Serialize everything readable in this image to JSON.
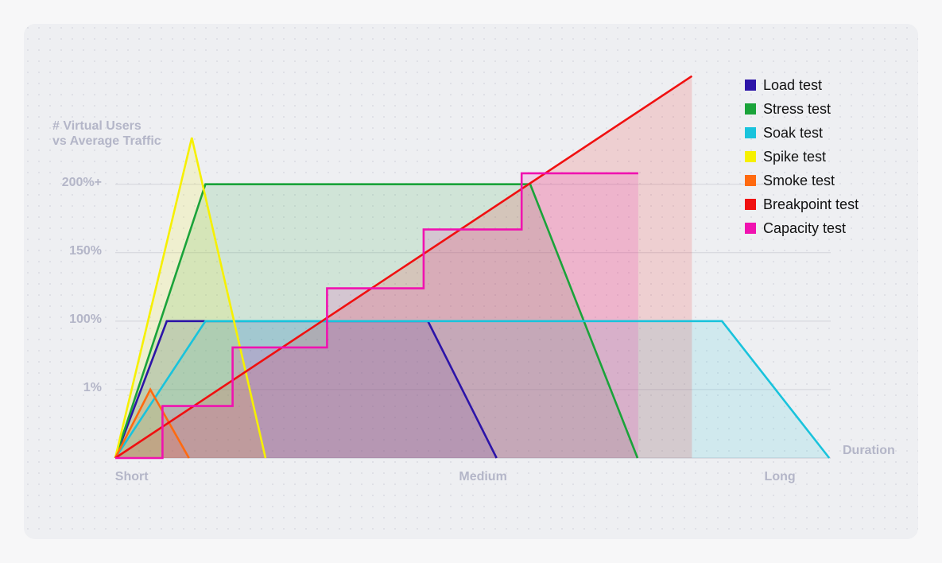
{
  "chart_data": {
    "type": "line",
    "y_label": [
      "# Virtual Users",
      "vs Average Traffic"
    ],
    "x_label": "Duration",
    "xlim": [
      0,
      100
    ],
    "xticks": [
      {
        "value": 2.3,
        "label": "Short"
      },
      {
        "value": 51.4,
        "label": "Medium"
      },
      {
        "value": 92.9,
        "label": "Long"
      }
    ],
    "ylim": [
      0,
      280
    ],
    "yticks": [
      {
        "value": 1,
        "label": "1%"
      },
      {
        "value": 100,
        "label": "100%"
      },
      {
        "value": 150,
        "label": "150%"
      },
      {
        "value": 200,
        "label": "200%+"
      }
    ],
    "grid": true,
    "legend": "top-right",
    "series": [
      {
        "name": "Load test",
        "color": "#2c14a8",
        "x": [
          0,
          7.2,
          43.7,
          53.3
        ],
        "values": [
          0,
          100,
          100,
          0
        ]
      },
      {
        "name": "Stress test",
        "color": "#1aa33a",
        "x": [
          0,
          12.6,
          58,
          73
        ],
        "values": [
          0,
          200,
          200,
          0
        ]
      },
      {
        "name": "Soak test",
        "color": "#19c3dc",
        "x": [
          0,
          12.6,
          84.8,
          99.8
        ],
        "values": [
          0,
          100,
          100,
          0
        ]
      },
      {
        "name": "Spike test",
        "color": "#f6f000",
        "x": [
          0,
          10.7,
          21
        ],
        "values": [
          0,
          234,
          0
        ]
      },
      {
        "name": "Smoke test",
        "color": "#ff6a10",
        "x": [
          0,
          4.9,
          10.3
        ],
        "values": [
          0,
          1,
          0
        ]
      },
      {
        "name": "Breakpoint test",
        "color": "#f01010",
        "x": [
          0,
          80.6
        ],
        "values": [
          0,
          279
        ]
      },
      {
        "name": "Capacity test",
        "color": "#f012b0",
        "x": [
          0,
          6.6,
          6.6,
          16.4,
          16.4,
          29.6,
          29.6,
          43.1,
          43.1,
          56.8,
          56.8,
          73.1
        ],
        "values": [
          0,
          0,
          0.76,
          0.76,
          62,
          62,
          124,
          124,
          167,
          167,
          208,
          208
        ]
      }
    ]
  }
}
